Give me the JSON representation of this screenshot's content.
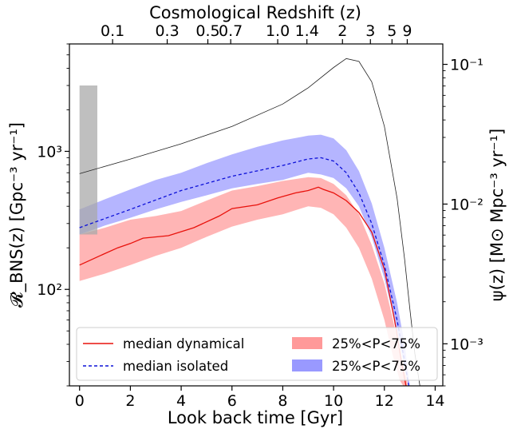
{
  "chart_data": {
    "type": "line",
    "title": "",
    "xlabel": "Look back time [Gyr]",
    "top_xlabel": "Cosmological Redshift (z)",
    "ylabel_left": "𝓡_BNS(z) [Gpc⁻³ yr⁻¹]",
    "ylabel_right": "ψ(z) [M⊙ Mpc⁻³ yr⁻¹]",
    "xlim": [
      -0.4,
      14.3
    ],
    "ylim_left": [
      20,
      6000
    ],
    "ylim_right": [
      0.0005,
      0.14
    ],
    "yscale": "log",
    "grid": false,
    "legend_position": "lower-left",
    "x_ticks": [
      {
        "value": 0,
        "label": "0"
      },
      {
        "value": 2,
        "label": "2"
      },
      {
        "value": 4,
        "label": "4"
      },
      {
        "value": 6,
        "label": "6"
      },
      {
        "value": 8,
        "label": "8"
      },
      {
        "value": 10,
        "label": "10"
      },
      {
        "value": 12,
        "label": "12"
      },
      {
        "value": 14,
        "label": "14"
      }
    ],
    "left_y_ticks": [
      {
        "value": 100,
        "label": "10²"
      },
      {
        "value": 1000,
        "label": "10³"
      }
    ],
    "right_y_ticks": [
      {
        "value": 0.001,
        "label": "10⁻³"
      },
      {
        "value": 0.01,
        "label": "10⁻²"
      },
      {
        "value": 0.1,
        "label": "10⁻¹"
      }
    ],
    "top_x_ticks": [
      {
        "value": 1.3,
        "label": "0.1"
      },
      {
        "value": 3.45,
        "label": "0.3"
      },
      {
        "value": 5.05,
        "label": "0.5"
      },
      {
        "value": 5.95,
        "label": "0.7"
      },
      {
        "value": 7.8,
        "label": "1.0"
      },
      {
        "value": 8.95,
        "label": "1.4"
      },
      {
        "value": 10.35,
        "label": "2"
      },
      {
        "value": 11.45,
        "label": "3"
      },
      {
        "value": 12.3,
        "label": "5"
      },
      {
        "value": 12.9,
        "label": "9"
      }
    ],
    "series": [
      {
        "name": "median dynamical",
        "style": "solid",
        "color": "#e8120c",
        "x": [
          0,
          0.8,
          1.5,
          2.0,
          2.5,
          3.5,
          4.5,
          5.5,
          6.0,
          7.0,
          7.8,
          8.5,
          9.0,
          9.4,
          9.6,
          10.0,
          10.5,
          11.0,
          11.5,
          12.0,
          12.4,
          12.7,
          12.9
        ],
        "values": [
          150,
          175,
          200,
          215,
          235,
          245,
          280,
          340,
          385,
          410,
          460,
          500,
          520,
          550,
          530,
          500,
          440,
          360,
          260,
          140,
          60,
          28,
          18
        ]
      },
      {
        "name": "median isolated",
        "style": "dashed",
        "color": "#0c10d8",
        "x": [
          0,
          2,
          4,
          6,
          8,
          9,
          9.5,
          10.0,
          10.5,
          11.0,
          11.5,
          12.0,
          12.5,
          12.8,
          13.0
        ],
        "values": [
          280,
          380,
          520,
          660,
          790,
          880,
          900,
          850,
          700,
          500,
          300,
          150,
          60,
          30,
          18
        ]
      },
      {
        "name": "",
        "style": "thin",
        "axis": "right",
        "color": "#222222",
        "x": [
          0,
          2,
          4,
          6,
          8,
          9,
          10,
          10.5,
          11,
          11.5,
          12,
          12.5,
          12.8,
          13.0,
          13.2,
          13.4
        ],
        "values": [
          0.0165,
          0.021,
          0.027,
          0.036,
          0.052,
          0.068,
          0.095,
          0.11,
          0.105,
          0.075,
          0.036,
          0.011,
          0.004,
          0.0018,
          0.00085,
          0.0005
        ]
      }
    ],
    "bands": [
      {
        "name": "25%<P<75%",
        "color": "#ff9999",
        "x": [
          0,
          1,
          2,
          3,
          4,
          5,
          6,
          7,
          8,
          9,
          9.5,
          10,
          10.5,
          11,
          11.5,
          12,
          12.3,
          12.6,
          12.9
        ],
        "low": [
          115,
          130,
          150,
          175,
          200,
          240,
          285,
          320,
          350,
          400,
          390,
          350,
          280,
          200,
          120,
          60,
          35,
          22,
          18
        ],
        "high": [
          250,
          280,
          320,
          340,
          370,
          440,
          520,
          560,
          610,
          650,
          640,
          580,
          480,
          350,
          210,
          110,
          65,
          35,
          22
        ]
      },
      {
        "name": "25%<P<75%",
        "color": "#9999ff",
        "x": [
          0,
          1,
          2,
          3,
          4,
          5,
          6,
          7,
          8,
          9,
          9.5,
          10,
          10.5,
          11,
          11.5,
          12,
          12.5,
          12.8,
          13.0
        ],
        "low": [
          250,
          290,
          330,
          380,
          430,
          480,
          540,
          580,
          620,
          700,
          680,
          640,
          540,
          400,
          240,
          120,
          50,
          27,
          18
        ],
        "high": [
          380,
          450,
          530,
          620,
          700,
          820,
          950,
          1080,
          1200,
          1300,
          1320,
          1240,
          1020,
          720,
          420,
          200,
          80,
          40,
          20
        ]
      },
      {
        "name": "",
        "color": "#aaaaaa",
        "x": [
          0,
          0.7
        ],
        "low": [
          250,
          250
        ],
        "high": [
          3000,
          3000
        ]
      }
    ],
    "legend": [
      {
        "label": "median dynamical",
        "style": "solid",
        "color": "#e8120c"
      },
      {
        "label": "25%<P<75%",
        "style": "patch",
        "color": "#ff9999"
      },
      {
        "label": "median isolated",
        "style": "dashed",
        "color": "#0c10d8"
      },
      {
        "label": "25%<P<75%",
        "style": "patch",
        "color": "#9999ff"
      }
    ]
  }
}
